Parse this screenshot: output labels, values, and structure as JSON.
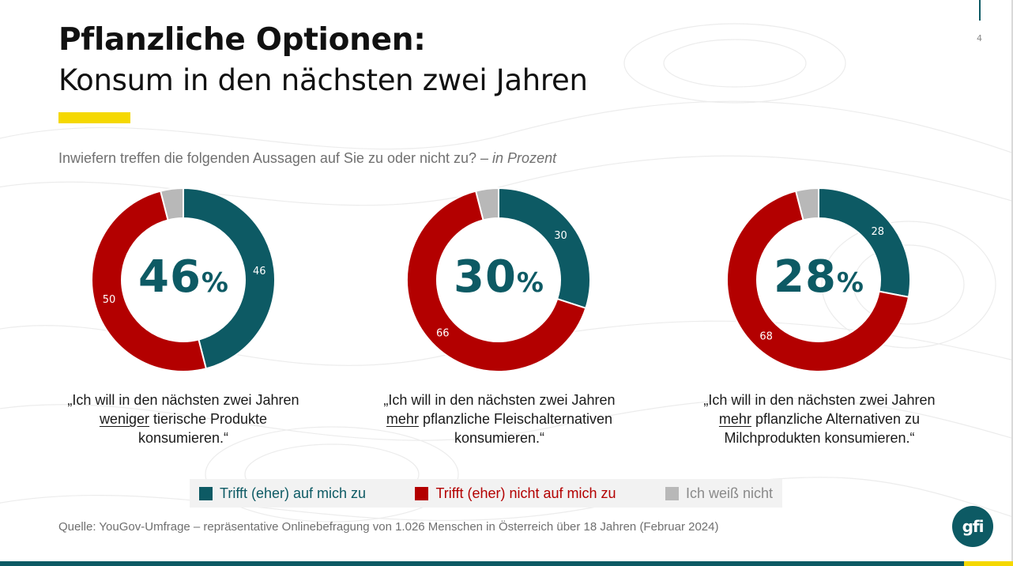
{
  "slide": {
    "page_number": "4",
    "title": "Pflanzliche Optionen:",
    "subtitle": "Konsum in den nächsten zwei Jahren",
    "question": "Inwiefern treffen die folgenden Aussagen auf Sie zu oder nicht zu?",
    "question_unit": " – in Prozent",
    "source": "Quelle: YouGov-Umfrage – repräsentative Onlinebefragung von 1.026 Menschen in Österreich über 18 Jahren (Februar 2024)",
    "logo_text": "gfi"
  },
  "colors": {
    "trifft": "#0d5a64",
    "nicht": "#b30000",
    "weiss_nicht": "#b8b8b8",
    "accent": "#f5d800"
  },
  "statements": [
    {
      "pre": "„Ich will in den nächsten zwei Jahren ",
      "em": "weniger",
      "post": " tierische Produkte konsumieren.“"
    },
    {
      "pre": "„Ich will in den nächsten zwei Jahren ",
      "em": "mehr",
      "post": " pflanzliche Fleischalternativen konsumieren.“"
    },
    {
      "pre": "„Ich will in den nächsten zwei Jahren ",
      "em": "mehr",
      "post": " pflanzliche Alternativen zu Milchprodukten konsumieren.“"
    }
  ],
  "legend": [
    "Trifft (eher) auf mich zu",
    "Trifft (eher) nicht auf mich zu",
    "Ich weiß nicht"
  ],
  "chart_data": [
    {
      "type": "pie",
      "center_label": "46",
      "center_unit": "%",
      "categories": [
        "Trifft (eher) auf mich zu",
        "Trifft (eher) nicht auf mich zu",
        "Ich weiß nicht"
      ],
      "values": [
        46,
        50,
        4
      ],
      "data_labels": [
        "46",
        "50",
        ""
      ]
    },
    {
      "type": "pie",
      "center_label": "30",
      "center_unit": "%",
      "categories": [
        "Trifft (eher) auf mich zu",
        "Trifft (eher) nicht auf mich zu",
        "Ich weiß nicht"
      ],
      "values": [
        30,
        66,
        4
      ],
      "data_labels": [
        "30",
        "66",
        ""
      ]
    },
    {
      "type": "pie",
      "center_label": "28",
      "center_unit": "%",
      "categories": [
        "Trifft (eher) auf mich zu",
        "Trifft (eher) nicht auf mich zu",
        "Ich weiß nicht"
      ],
      "values": [
        28,
        68,
        4
      ],
      "data_labels": [
        "28",
        "68",
        ""
      ]
    }
  ]
}
